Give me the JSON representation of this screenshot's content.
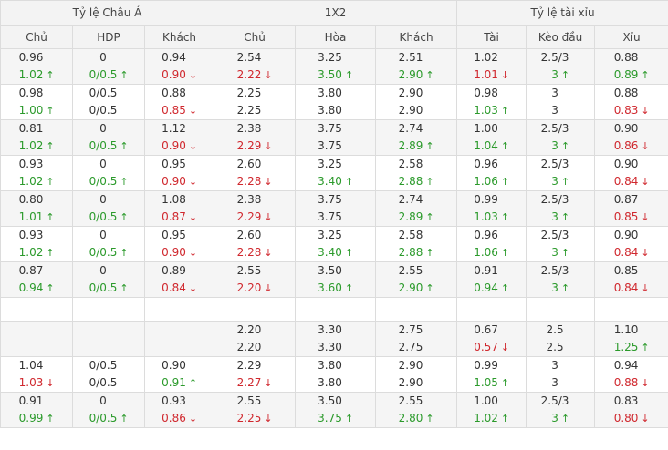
{
  "groups": [
    {
      "label": "Tỷ lệ Châu Á",
      "span": 3
    },
    {
      "label": "1X2",
      "span": 3
    },
    {
      "label": "Tỷ lệ tài xỉu",
      "span": 3
    }
  ],
  "columns": [
    "Chủ",
    "HDP",
    "Khách",
    "Chủ",
    "Hòa",
    "Khách",
    "Tài",
    "Kèo đầu",
    "Xỉu"
  ],
  "arrows": {
    "up": "↑",
    "down": "↓"
  },
  "colors": {
    "up": "#2b9a2b",
    "down": "#d0282e",
    "row_alt": "#f5f5f5",
    "header_bg": "#f3f3f3"
  },
  "rows": [
    {
      "cells": [
        {
          "top": "0.96",
          "bottom": "1.02",
          "dir": "up"
        },
        {
          "top": "0",
          "bottom": "0/0.5",
          "dir": "up"
        },
        {
          "top": "0.94",
          "bottom": "0.90",
          "dir": "down"
        },
        {
          "top": "2.54",
          "bottom": "2.22",
          "dir": "down"
        },
        {
          "top": "3.25",
          "bottom": "3.50",
          "dir": "up"
        },
        {
          "top": "2.51",
          "bottom": "2.90",
          "dir": "up"
        },
        {
          "top": "1.02",
          "bottom": "1.01",
          "dir": "down"
        },
        {
          "top": "2.5/3",
          "bottom": "3",
          "dir": "up"
        },
        {
          "top": "0.88",
          "bottom": "0.89",
          "dir": "up"
        }
      ]
    },
    {
      "cells": [
        {
          "top": "0.98",
          "bottom": "1.00",
          "dir": "up"
        },
        {
          "top": "0/0.5",
          "bottom": "0/0.5",
          "dir": ""
        },
        {
          "top": "0.88",
          "bottom": "0.85",
          "dir": "down"
        },
        {
          "top": "2.25",
          "bottom": "2.25",
          "dir": ""
        },
        {
          "top": "3.80",
          "bottom": "3.80",
          "dir": ""
        },
        {
          "top": "2.90",
          "bottom": "2.90",
          "dir": ""
        },
        {
          "top": "0.98",
          "bottom": "1.03",
          "dir": "up"
        },
        {
          "top": "3",
          "bottom": "3",
          "dir": ""
        },
        {
          "top": "0.88",
          "bottom": "0.83",
          "dir": "down"
        }
      ]
    },
    {
      "cells": [
        {
          "top": "0.81",
          "bottom": "1.02",
          "dir": "up"
        },
        {
          "top": "0",
          "bottom": "0/0.5",
          "dir": "up"
        },
        {
          "top": "1.12",
          "bottom": "0.90",
          "dir": "down"
        },
        {
          "top": "2.38",
          "bottom": "2.29",
          "dir": "down"
        },
        {
          "top": "3.75",
          "bottom": "3.75",
          "dir": ""
        },
        {
          "top": "2.74",
          "bottom": "2.89",
          "dir": "up"
        },
        {
          "top": "1.00",
          "bottom": "1.04",
          "dir": "up"
        },
        {
          "top": "2.5/3",
          "bottom": "3",
          "dir": "up"
        },
        {
          "top": "0.90",
          "bottom": "0.86",
          "dir": "down"
        }
      ]
    },
    {
      "cells": [
        {
          "top": "0.93",
          "bottom": "1.02",
          "dir": "up"
        },
        {
          "top": "0",
          "bottom": "0/0.5",
          "dir": "up"
        },
        {
          "top": "0.95",
          "bottom": "0.90",
          "dir": "down"
        },
        {
          "top": "2.60",
          "bottom": "2.28",
          "dir": "down"
        },
        {
          "top": "3.25",
          "bottom": "3.40",
          "dir": "up"
        },
        {
          "top": "2.58",
          "bottom": "2.88",
          "dir": "up"
        },
        {
          "top": "0.96",
          "bottom": "1.06",
          "dir": "up"
        },
        {
          "top": "2.5/3",
          "bottom": "3",
          "dir": "up"
        },
        {
          "top": "0.90",
          "bottom": "0.84",
          "dir": "down"
        }
      ]
    },
    {
      "cells": [
        {
          "top": "0.80",
          "bottom": "1.01",
          "dir": "up"
        },
        {
          "top": "0",
          "bottom": "0/0.5",
          "dir": "up"
        },
        {
          "top": "1.08",
          "bottom": "0.87",
          "dir": "down"
        },
        {
          "top": "2.38",
          "bottom": "2.29",
          "dir": "down"
        },
        {
          "top": "3.75",
          "bottom": "3.75",
          "dir": ""
        },
        {
          "top": "2.74",
          "bottom": "2.89",
          "dir": "up"
        },
        {
          "top": "0.99",
          "bottom": "1.03",
          "dir": "up"
        },
        {
          "top": "2.5/3",
          "bottom": "3",
          "dir": "up"
        },
        {
          "top": "0.87",
          "bottom": "0.85",
          "dir": "down"
        }
      ]
    },
    {
      "cells": [
        {
          "top": "0.93",
          "bottom": "1.02",
          "dir": "up"
        },
        {
          "top": "0",
          "bottom": "0/0.5",
          "dir": "up"
        },
        {
          "top": "0.95",
          "bottom": "0.90",
          "dir": "down"
        },
        {
          "top": "2.60",
          "bottom": "2.28",
          "dir": "down"
        },
        {
          "top": "3.25",
          "bottom": "3.40",
          "dir": "up"
        },
        {
          "top": "2.58",
          "bottom": "2.88",
          "dir": "up"
        },
        {
          "top": "0.96",
          "bottom": "1.06",
          "dir": "up"
        },
        {
          "top": "2.5/3",
          "bottom": "3",
          "dir": "up"
        },
        {
          "top": "0.90",
          "bottom": "0.84",
          "dir": "down"
        }
      ]
    },
    {
      "cells": [
        {
          "top": "0.87",
          "bottom": "0.94",
          "dir": "up"
        },
        {
          "top": "0",
          "bottom": "0/0.5",
          "dir": "up"
        },
        {
          "top": "0.89",
          "bottom": "0.84",
          "dir": "down"
        },
        {
          "top": "2.55",
          "bottom": "2.20",
          "dir": "down"
        },
        {
          "top": "3.50",
          "bottom": "3.60",
          "dir": "up"
        },
        {
          "top": "2.55",
          "bottom": "2.90",
          "dir": "up"
        },
        {
          "top": "0.91",
          "bottom": "0.94",
          "dir": "up"
        },
        {
          "top": "2.5/3",
          "bottom": "3",
          "dir": "up"
        },
        {
          "top": "0.85",
          "bottom": "0.84",
          "dir": "down"
        }
      ]
    },
    {
      "empty": true,
      "cells": []
    },
    {
      "cells": [
        {
          "top": "",
          "bottom": "",
          "dir": ""
        },
        {
          "top": "",
          "bottom": "",
          "dir": ""
        },
        {
          "top": "",
          "bottom": "",
          "dir": ""
        },
        {
          "top": "2.20",
          "bottom": "2.20",
          "dir": ""
        },
        {
          "top": "3.30",
          "bottom": "3.30",
          "dir": ""
        },
        {
          "top": "2.75",
          "bottom": "2.75",
          "dir": ""
        },
        {
          "top": "0.67",
          "bottom": "0.57",
          "dir": "down"
        },
        {
          "top": "2.5",
          "bottom": "2.5",
          "dir": ""
        },
        {
          "top": "1.10",
          "bottom": "1.25",
          "dir": "up"
        }
      ]
    },
    {
      "cells": [
        {
          "top": "1.04",
          "bottom": "1.03",
          "dir": "down"
        },
        {
          "top": "0/0.5",
          "bottom": "0/0.5",
          "dir": ""
        },
        {
          "top": "0.90",
          "bottom": "0.91",
          "dir": "up"
        },
        {
          "top": "2.29",
          "bottom": "2.27",
          "dir": "down"
        },
        {
          "top": "3.80",
          "bottom": "3.80",
          "dir": ""
        },
        {
          "top": "2.90",
          "bottom": "2.90",
          "dir": ""
        },
        {
          "top": "0.99",
          "bottom": "1.05",
          "dir": "up"
        },
        {
          "top": "3",
          "bottom": "3",
          "dir": ""
        },
        {
          "top": "0.94",
          "bottom": "0.88",
          "dir": "down"
        }
      ]
    },
    {
      "cells": [
        {
          "top": "0.91",
          "bottom": "0.99",
          "dir": "up"
        },
        {
          "top": "0",
          "bottom": "0/0.5",
          "dir": "up"
        },
        {
          "top": "0.93",
          "bottom": "0.86",
          "dir": "down"
        },
        {
          "top": "2.55",
          "bottom": "2.25",
          "dir": "down"
        },
        {
          "top": "3.50",
          "bottom": "3.75",
          "dir": "up"
        },
        {
          "top": "2.55",
          "bottom": "2.80",
          "dir": "up"
        },
        {
          "top": "1.00",
          "bottom": "1.02",
          "dir": "up"
        },
        {
          "top": "2.5/3",
          "bottom": "3",
          "dir": "up"
        },
        {
          "top": "0.83",
          "bottom": "0.80",
          "dir": "down"
        }
      ]
    }
  ]
}
